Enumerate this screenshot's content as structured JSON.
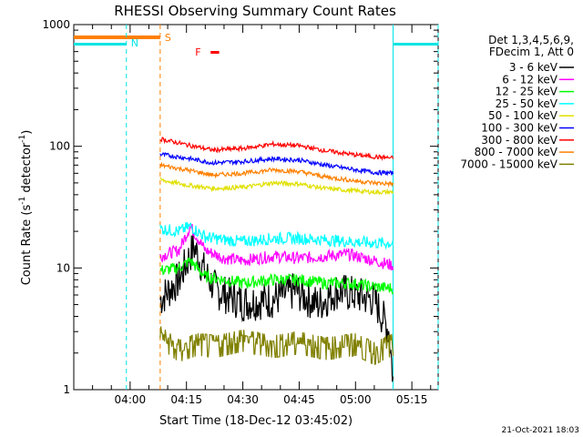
{
  "chart_data": {
    "type": "line",
    "title": "RHESSI Observing Summary Count Rates",
    "xlabel": "Start Time (18-Dec-12 03:45:02)",
    "ylabel_main": "Count Rate (s",
    "ylabel_sup1": "-1",
    "ylabel_mid": " detector",
    "ylabel_sup2": "-1",
    "ylabel_end": ")",
    "y_scale": "log",
    "ylim": [
      1,
      1000
    ],
    "xlim": [
      "03:45",
      "05:22"
    ],
    "x_ticks": [
      "04:00",
      "04:15",
      "04:30",
      "04:45",
      "05:00",
      "05:15"
    ],
    "y_ticks": [
      "1",
      "10",
      "100",
      "1000"
    ],
    "legend_header": [
      "Det 1,3,4,5,6,9,",
      "FDecim 1, Att 0"
    ],
    "legend_position": "right",
    "timestamp": "21-Oct-2021 18:03",
    "flags": {
      "S": {
        "label": "S",
        "color": "#ff7f00",
        "start": "03:45",
        "end": "04:08"
      },
      "N": {
        "label": "N",
        "color": "#00e5e5",
        "nights": [
          [
            "03:45",
            "03:59"
          ],
          [
            "05:10",
            "05:22"
          ]
        ]
      },
      "F": {
        "label": "F",
        "color": "#ff0000",
        "start": "04:19",
        "end": "04:22"
      }
    },
    "data_start": "04:08",
    "data_end": "05:10",
    "series": [
      {
        "name": "3 - 6 keV",
        "color": "#000000",
        "values": [
          [
            "04:08",
            5.5
          ],
          [
            "04:13",
            8
          ],
          [
            "04:17",
            15
          ],
          [
            "04:20",
            9
          ],
          [
            "04:23",
            6.5
          ],
          [
            "04:30",
            5.2
          ],
          [
            "04:38",
            5.5
          ],
          [
            "04:44",
            6.5
          ],
          [
            "04:50",
            5.0
          ],
          [
            "04:55",
            6.5
          ],
          [
            "05:00",
            6.0
          ],
          [
            "05:05",
            5.5
          ],
          [
            "05:09",
            3.0
          ],
          [
            "05:10",
            1.2
          ]
        ]
      },
      {
        "name": "6 - 12 keV",
        "color": "#ff00ff",
        "values": [
          [
            "04:08",
            12.5
          ],
          [
            "04:13",
            14
          ],
          [
            "04:16",
            22
          ],
          [
            "04:20",
            14
          ],
          [
            "04:25",
            12
          ],
          [
            "04:30",
            11.5
          ],
          [
            "04:38",
            12.5
          ],
          [
            "04:45",
            12
          ],
          [
            "04:52",
            12.5
          ],
          [
            "04:58",
            13
          ],
          [
            "05:05",
            11.5
          ],
          [
            "05:10",
            10.5
          ]
        ]
      },
      {
        "name": "12 - 25 keV",
        "color": "#00ff00",
        "values": [
          [
            "04:08",
            9.5
          ],
          [
            "04:13",
            10
          ],
          [
            "04:16",
            11.5
          ],
          [
            "04:20",
            8.5
          ],
          [
            "04:25",
            8
          ],
          [
            "04:30",
            7.5
          ],
          [
            "04:38",
            8
          ],
          [
            "04:45",
            8
          ],
          [
            "04:52",
            7.5
          ],
          [
            "04:58",
            7.5
          ],
          [
            "05:05",
            7
          ],
          [
            "05:10",
            6.8
          ]
        ]
      },
      {
        "name": "25 - 50 keV",
        "color": "#00ffff",
        "values": [
          [
            "04:08",
            21
          ],
          [
            "04:13",
            20
          ],
          [
            "04:16",
            22
          ],
          [
            "04:20",
            18
          ],
          [
            "04:25",
            17
          ],
          [
            "04:30",
            16.5
          ],
          [
            "04:38",
            17.5
          ],
          [
            "04:45",
            17.5
          ],
          [
            "04:52",
            17
          ],
          [
            "04:58",
            16.5
          ],
          [
            "05:05",
            16
          ],
          [
            "05:10",
            16
          ]
        ]
      },
      {
        "name": "50 - 100 keV",
        "color": "#e0e000",
        "values": [
          [
            "04:08",
            53
          ],
          [
            "04:15",
            48
          ],
          [
            "04:22",
            45
          ],
          [
            "04:30",
            46
          ],
          [
            "04:38",
            50
          ],
          [
            "04:45",
            49
          ],
          [
            "04:52",
            45
          ],
          [
            "05:00",
            43
          ],
          [
            "05:05",
            42
          ],
          [
            "05:10",
            42
          ]
        ]
      },
      {
        "name": "100 - 300 keV",
        "color": "#0000ff",
        "values": [
          [
            "04:08",
            86
          ],
          [
            "04:15",
            80
          ],
          [
            "04:22",
            73
          ],
          [
            "04:30",
            75
          ],
          [
            "04:38",
            79
          ],
          [
            "04:45",
            77
          ],
          [
            "04:52",
            70
          ],
          [
            "05:00",
            64
          ],
          [
            "05:05",
            61
          ],
          [
            "05:10",
            60
          ]
        ]
      },
      {
        "name": "300 - 800 keV",
        "color": "#ff0000",
        "values": [
          [
            "04:08",
            115
          ],
          [
            "04:15",
            103
          ],
          [
            "04:22",
            93
          ],
          [
            "04:30",
            96
          ],
          [
            "04:38",
            104
          ],
          [
            "04:45",
            101
          ],
          [
            "04:52",
            92
          ],
          [
            "05:00",
            85
          ],
          [
            "05:05",
            82
          ],
          [
            "05:10",
            80
          ]
        ]
      },
      {
        "name": "800 - 7000 keV",
        "color": "#ff8000",
        "values": [
          [
            "04:08",
            70
          ],
          [
            "04:15",
            64
          ],
          [
            "04:22",
            58
          ],
          [
            "04:30",
            60
          ],
          [
            "04:38",
            64
          ],
          [
            "04:45",
            62
          ],
          [
            "04:52",
            56
          ],
          [
            "05:00",
            52
          ],
          [
            "05:05",
            50
          ],
          [
            "05:10",
            49
          ]
        ]
      },
      {
        "name": "7000 - 15000 keV",
        "color": "#808000",
        "values": [
          [
            "04:08",
            3.0
          ],
          [
            "04:13",
            2.3
          ],
          [
            "04:18",
            2.6
          ],
          [
            "04:23",
            2.5
          ],
          [
            "04:30",
            2.8
          ],
          [
            "04:38",
            2.5
          ],
          [
            "04:45",
            2.7
          ],
          [
            "04:52",
            2.4
          ],
          [
            "05:00",
            2.6
          ],
          [
            "05:05",
            2.2
          ],
          [
            "05:10",
            2.6
          ]
        ]
      }
    ]
  }
}
